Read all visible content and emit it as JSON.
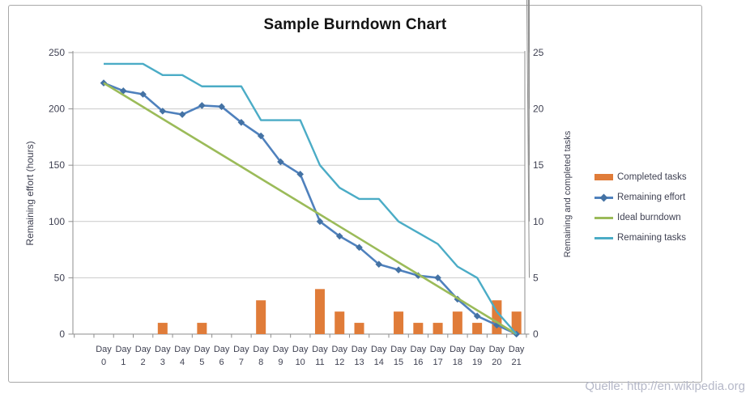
{
  "chart_data": {
    "type": "combo-bar-line",
    "title": "Sample Burndown Chart",
    "x": {
      "label_prefix": "Day",
      "days": [
        0,
        1,
        2,
        3,
        4,
        5,
        6,
        7,
        8,
        9,
        10,
        11,
        12,
        13,
        14,
        15,
        16,
        17,
        18,
        19,
        20,
        21
      ]
    },
    "left_axis": {
      "label": "Remaining effort (hours)",
      "min": 0,
      "max": 250,
      "ticks": [
        0,
        50,
        100,
        150,
        200,
        250
      ]
    },
    "right_axis": {
      "label": "Remaining and completed tasks",
      "min": 0,
      "max": 25,
      "ticks": [
        0,
        5,
        10,
        15,
        20,
        25
      ]
    },
    "grid": "horizontal",
    "legend_position": "right",
    "series": [
      {
        "name": "Completed tasks",
        "type": "bar",
        "axis": "right",
        "color": "#E07C39",
        "values": [
          0,
          0,
          0,
          1,
          0,
          1,
          0,
          0,
          3,
          0,
          0,
          4,
          2,
          1,
          0,
          2,
          1,
          1,
          2,
          1,
          3,
          2
        ]
      },
      {
        "name": "Remaining effort",
        "type": "line",
        "axis": "left",
        "marker": "diamond",
        "color": "#4F81BD",
        "marker_color": "#4472A4",
        "values": [
          223,
          216,
          213,
          198,
          195,
          203,
          202,
          188,
          176,
          153,
          142,
          100,
          87,
          77,
          62,
          57,
          52,
          50,
          31,
          16,
          8,
          0
        ]
      },
      {
        "name": "Ideal burndown",
        "type": "line",
        "axis": "left",
        "color": "#9BBB59",
        "values": [
          223,
          212.4,
          201.8,
          191.1,
          180.5,
          169.9,
          159.3,
          148.7,
          138,
          127.4,
          116.8,
          106.2,
          95.6,
          85,
          74.3,
          63.7,
          53.1,
          42.5,
          31.9,
          21.2,
          10.6,
          0
        ]
      },
      {
        "name": "Remaining tasks",
        "type": "line",
        "axis": "right",
        "color": "#4BACC6",
        "values": [
          24,
          24,
          24,
          23,
          23,
          22,
          22,
          22,
          19,
          19,
          19,
          15,
          13,
          12,
          12,
          10,
          9,
          8,
          6,
          5,
          2,
          0
        ]
      }
    ]
  },
  "watermark": {
    "text": "Quelle: http://en.wikipedia.org"
  },
  "colors": {
    "background": "#FFFFFF",
    "grid": "#C9C9C9",
    "axis": "#8E8E8E",
    "text": "#3F4152",
    "frame_border": "#A8A8A8",
    "watermark": "#B5B8C8"
  }
}
